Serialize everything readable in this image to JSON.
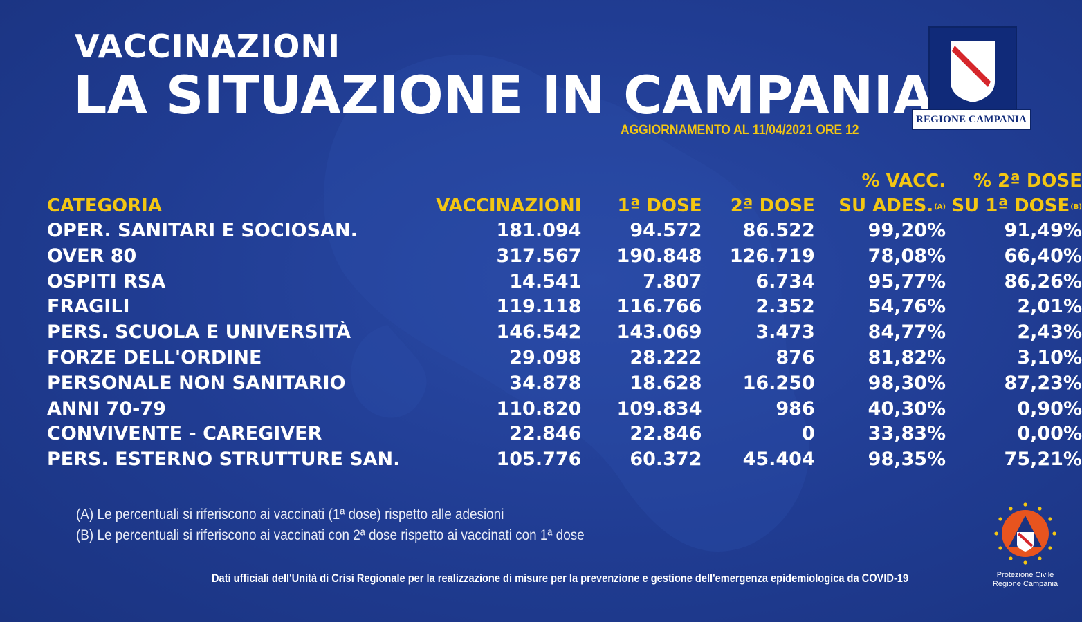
{
  "header": {
    "kicker": "VACCINAZIONI",
    "title": "LA SITUAZIONE IN CAMPANIA",
    "update": "AGGIORNAMENTO AL 11/04/2021 ORE 12"
  },
  "logos": {
    "region_label": "REGIONE CAMPANIA",
    "civil_protection_line1": "Protezione Civile",
    "civil_protection_line2": "Regione Campania"
  },
  "table": {
    "headers": {
      "categoria": "CATEGORIA",
      "vaccinazioni": "VACCINAZIONI",
      "dose1": "1ª DOSE",
      "dose2": "2ª DOSE",
      "pct_vacc_line1": "% VACC.",
      "pct_vacc_line2": "SU ADES.",
      "pct_vacc_note": "(A)",
      "pct_dose2_line1": "% 2ª DOSE",
      "pct_dose2_line2": "SU 1ª DOSE",
      "pct_dose2_note": "(B)"
    },
    "rows": [
      {
        "cat": "OPER. SANITARI E SOCIOSAN.",
        "vacc": "181.094",
        "d1": "94.572",
        "d2": "86.522",
        "pv": "99,20%",
        "p2": "91,49%"
      },
      {
        "cat": "OVER 80",
        "vacc": "317.567",
        "d1": "190.848",
        "d2": "126.719",
        "pv": "78,08%",
        "p2": "66,40%"
      },
      {
        "cat": "OSPITI RSA",
        "vacc": "14.541",
        "d1": "7.807",
        "d2": "6.734",
        "pv": "95,77%",
        "p2": "86,26%"
      },
      {
        "cat": "FRAGILI",
        "vacc": "119.118",
        "d1": "116.766",
        "d2": "2.352",
        "pv": "54,76%",
        "p2": "2,01%"
      },
      {
        "cat": "PERS. SCUOLA E UNIVERSITÀ",
        "vacc": "146.542",
        "d1": "143.069",
        "d2": "3.473",
        "pv": "84,77%",
        "p2": "2,43%"
      },
      {
        "cat": "FORZE DELL'ORDINE",
        "vacc": "29.098",
        "d1": "28.222",
        "d2": "876",
        "pv": "81,82%",
        "p2": "3,10%"
      },
      {
        "cat": "PERSONALE NON SANITARIO",
        "vacc": "34.878",
        "d1": "18.628",
        "d2": "16.250",
        "pv": "98,30%",
        "p2": "87,23%"
      },
      {
        "cat": "ANNI 70-79",
        "vacc": "110.820",
        "d1": "109.834",
        "d2": "986",
        "pv": "40,30%",
        "p2": "0,90%"
      },
      {
        "cat": "CONVIVENTE - CAREGIVER",
        "vacc": "22.846",
        "d1": "22.846",
        "d2": "0",
        "pv": "33,83%",
        "p2": "0,00%"
      },
      {
        "cat": "PERS. ESTERNO STRUTTURE SAN.",
        "vacc": "105.776",
        "d1": "60.372",
        "d2": "45.404",
        "pv": "98,35%",
        "p2": "75,21%"
      }
    ]
  },
  "notes": {
    "a": "(A) Le percentuali si riferiscono ai vaccinati (1ª dose) rispetto alle adesioni",
    "b": "(B) Le percentuali si riferiscono ai vaccinati con 2ª dose rispetto ai vaccinati con 1ª dose"
  },
  "footer": "Dati ufficiali dell'Unità di Crisi Regionale per la realizzazione di misure per la prevenzione e gestione dell'emergenza epidemiologica da COVID-19",
  "colors": {
    "background": "#203c92",
    "accent": "#f3c613",
    "text": "#ffffff"
  }
}
